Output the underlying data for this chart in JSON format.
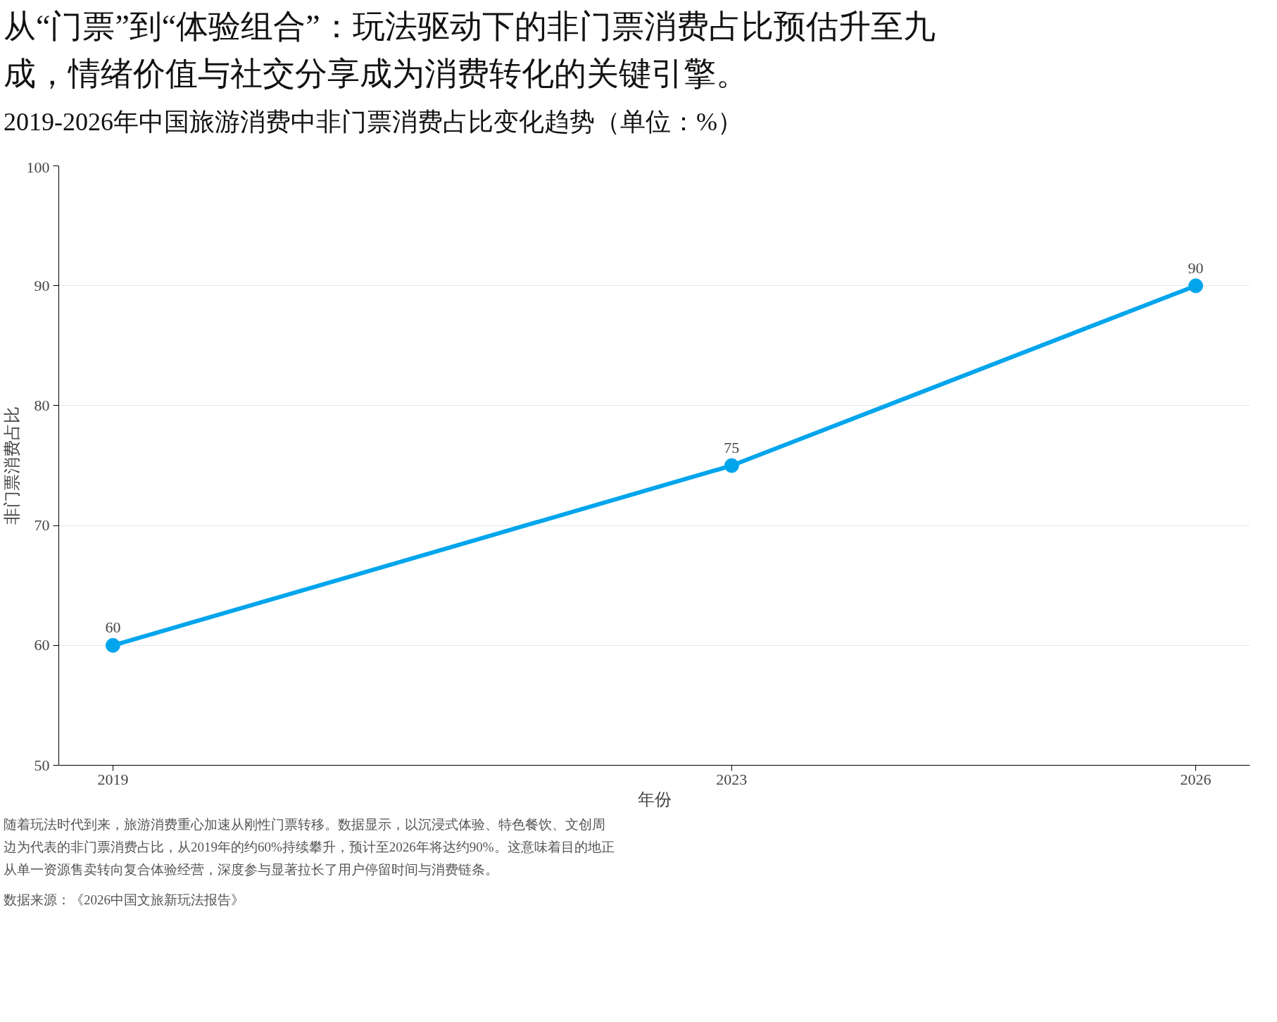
{
  "chart_data": {
    "type": "line",
    "title": "从“门票”到“体验组合”：玩法驱动下的非门票消费占比预估升至九成，情绪价值与社交分享成为消费转化的关键引擎。",
    "subtitle": "2019-2026年中国旅游消费中非门票消费占比变化趋势（单位：%）",
    "xlabel": "年份",
    "ylabel": "非门票消费占比",
    "x": [
      2019,
      2023,
      2026
    ],
    "series": [
      {
        "color": "#00a5ec",
        "values": [
          60,
          75,
          90
        ]
      }
    ],
    "marker": "circle",
    "line_style": "solid",
    "data_labels": true,
    "grid": "y",
    "xlim": [
      2018.65,
      2026.35
    ],
    "xticks": [
      2019,
      2023,
      2026
    ],
    "ylim": [
      50,
      100
    ],
    "yticks": [
      50,
      60,
      70,
      80,
      90,
      100
    ],
    "annotations": [
      "随着玩法时代到来，旅游消费重心加速从刚性门票转移。数据显示，以沉浸式体验、特色餐饮、文创周边为代表的非门票消费占比，从2019年的约60%持续攀升，预计至2026年将达约90%。这意味着目的地正从单一资源售卖转向复合体验经营，深度参与显著拉长了用户停留时间与消费链条。",
      "数据来源：《2026中国文旅新玩法报告》"
    ]
  }
}
